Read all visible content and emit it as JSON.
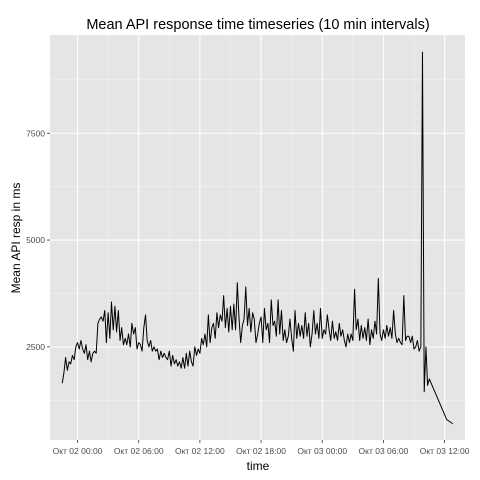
{
  "chart_data": {
    "type": "line",
    "title": "Mean API response time timeseries (10 min intervals)",
    "xlabel": "time",
    "ylabel": "Mean API resp in ms",
    "x_tick_labels": [
      "Окт 02 00:00",
      "Окт 02 06:00",
      "Окт 02 12:00",
      "Окт 02 18:00",
      "Окт 03 00:00",
      "Окт 03 06:00",
      "Окт 03 12:00"
    ],
    "x_ticks_hours": [
      0,
      6,
      12,
      18,
      24,
      30,
      36
    ],
    "x_range_hours": [
      -2.7,
      38.0
    ],
    "y_ticks": [
      2500,
      5000,
      7500
    ],
    "ylim": [
      320,
      9800
    ],
    "grid": true,
    "series": [
      {
        "color": "#000000",
        "points": [
          [
            -1.5,
            1650
          ],
          [
            -1.33,
            1900
          ],
          [
            -1.17,
            2250
          ],
          [
            -1.0,
            1950
          ],
          [
            -0.83,
            2150
          ],
          [
            -0.67,
            2100
          ],
          [
            -0.5,
            2300
          ],
          [
            -0.33,
            2200
          ],
          [
            -0.17,
            2500
          ],
          [
            0.0,
            2600
          ],
          [
            0.17,
            2450
          ],
          [
            0.33,
            2650
          ],
          [
            0.5,
            2450
          ],
          [
            0.67,
            2350
          ],
          [
            0.83,
            2550
          ],
          [
            1.0,
            2200
          ],
          [
            1.17,
            2400
          ],
          [
            1.33,
            2150
          ],
          [
            1.5,
            2350
          ],
          [
            1.67,
            2400
          ],
          [
            1.83,
            2350
          ],
          [
            2.0,
            3050
          ],
          [
            2.17,
            3150
          ],
          [
            2.33,
            3200
          ],
          [
            2.5,
            3100
          ],
          [
            2.67,
            3350
          ],
          [
            2.83,
            2600
          ],
          [
            3.0,
            3300
          ],
          [
            3.17,
            2700
          ],
          [
            3.33,
            3550
          ],
          [
            3.5,
            2900
          ],
          [
            3.67,
            3450
          ],
          [
            3.83,
            2850
          ],
          [
            4.0,
            3350
          ],
          [
            4.17,
            2650
          ],
          [
            4.33,
            2950
          ],
          [
            4.5,
            2550
          ],
          [
            4.67,
            2700
          ],
          [
            4.83,
            2550
          ],
          [
            5.0,
            2800
          ],
          [
            5.17,
            2500
          ],
          [
            5.33,
            3050
          ],
          [
            5.5,
            2800
          ],
          [
            5.67,
            2950
          ],
          [
            5.83,
            2450
          ],
          [
            6.0,
            2600
          ],
          [
            6.17,
            2550
          ],
          [
            6.33,
            2400
          ],
          [
            6.5,
            2950
          ],
          [
            6.67,
            3250
          ],
          [
            6.83,
            2650
          ],
          [
            7.0,
            2500
          ],
          [
            7.17,
            2650
          ],
          [
            7.33,
            2400
          ],
          [
            7.5,
            2500
          ],
          [
            7.67,
            2400
          ],
          [
            7.83,
            2450
          ],
          [
            8.0,
            2200
          ],
          [
            8.17,
            2400
          ],
          [
            8.33,
            2250
          ],
          [
            8.5,
            2350
          ],
          [
            8.67,
            2250
          ],
          [
            8.83,
            2200
          ],
          [
            9.0,
            2400
          ],
          [
            9.17,
            2050
          ],
          [
            9.33,
            2300
          ],
          [
            9.5,
            2100
          ],
          [
            9.67,
            2200
          ],
          [
            9.83,
            2050
          ],
          [
            10.0,
            2150
          ],
          [
            10.17,
            2000
          ],
          [
            10.33,
            2250
          ],
          [
            10.5,
            2000
          ],
          [
            10.67,
            2350
          ],
          [
            10.83,
            2050
          ],
          [
            11.0,
            2400
          ],
          [
            11.17,
            2150
          ],
          [
            11.33,
            2050
          ],
          [
            11.5,
            2500
          ],
          [
            11.67,
            2300
          ],
          [
            11.83,
            2450
          ],
          [
            12.0,
            2350
          ],
          [
            12.17,
            2700
          ],
          [
            12.33,
            2550
          ],
          [
            12.5,
            2800
          ],
          [
            12.67,
            2500
          ],
          [
            12.83,
            3250
          ],
          [
            13.0,
            2600
          ],
          [
            13.17,
            2950
          ],
          [
            13.33,
            3050
          ],
          [
            13.5,
            2700
          ],
          [
            13.67,
            3300
          ],
          [
            13.83,
            2950
          ],
          [
            14.0,
            3250
          ],
          [
            14.17,
            3100
          ],
          [
            14.33,
            3700
          ],
          [
            14.5,
            2950
          ],
          [
            14.67,
            3400
          ],
          [
            14.83,
            2850
          ],
          [
            15.0,
            3450
          ],
          [
            15.17,
            2900
          ],
          [
            15.33,
            3500
          ],
          [
            15.5,
            2900
          ],
          [
            15.67,
            4000
          ],
          [
            15.83,
            3200
          ],
          [
            16.0,
            2600
          ],
          [
            16.17,
            3000
          ],
          [
            16.33,
            3150
          ],
          [
            16.5,
            3900
          ],
          [
            16.67,
            3000
          ],
          [
            16.83,
            3400
          ],
          [
            17.0,
            2850
          ],
          [
            17.17,
            3300
          ],
          [
            17.33,
            3150
          ],
          [
            17.5,
            2600
          ],
          [
            17.67,
            2800
          ],
          [
            17.83,
            3050
          ],
          [
            18.0,
            3200
          ],
          [
            18.17,
            2600
          ],
          [
            18.33,
            3400
          ],
          [
            18.5,
            2900
          ],
          [
            18.67,
            3050
          ],
          [
            18.83,
            2600
          ],
          [
            19.0,
            3600
          ],
          [
            19.17,
            3000
          ],
          [
            19.33,
            3100
          ],
          [
            19.5,
            2750
          ],
          [
            19.67,
            3600
          ],
          [
            19.83,
            2800
          ],
          [
            20.0,
            3350
          ],
          [
            20.17,
            2650
          ],
          [
            20.33,
            2900
          ],
          [
            20.5,
            2600
          ],
          [
            20.67,
            2750
          ],
          [
            20.83,
            3150
          ],
          [
            21.0,
            2700
          ],
          [
            21.17,
            2400
          ],
          [
            21.33,
            3350
          ],
          [
            21.5,
            2700
          ],
          [
            21.67,
            3050
          ],
          [
            21.83,
            2750
          ],
          [
            22.0,
            3000
          ],
          [
            22.17,
            2700
          ],
          [
            22.33,
            3300
          ],
          [
            22.5,
            2750
          ],
          [
            22.67,
            3050
          ],
          [
            22.83,
            2500
          ],
          [
            23.0,
            2800
          ],
          [
            23.17,
            3350
          ],
          [
            23.33,
            2800
          ],
          [
            23.5,
            3050
          ],
          [
            23.67,
            2700
          ],
          [
            23.83,
            3400
          ],
          [
            24.0,
            2700
          ],
          [
            24.17,
            2900
          ],
          [
            24.33,
            2800
          ],
          [
            24.5,
            3250
          ],
          [
            24.67,
            2900
          ],
          [
            24.83,
            2650
          ],
          [
            25.0,
            3100
          ],
          [
            25.17,
            2700
          ],
          [
            25.33,
            2850
          ],
          [
            25.5,
            2650
          ],
          [
            25.67,
            3050
          ],
          [
            25.83,
            2750
          ],
          [
            26.0,
            2900
          ],
          [
            26.17,
            2650
          ],
          [
            26.33,
            2500
          ],
          [
            26.5,
            2800
          ],
          [
            26.67,
            2600
          ],
          [
            26.83,
            2800
          ],
          [
            27.0,
            2650
          ],
          [
            27.17,
            3850
          ],
          [
            27.33,
            2900
          ],
          [
            27.5,
            3150
          ],
          [
            27.67,
            2650
          ],
          [
            27.83,
            3000
          ],
          [
            28.0,
            2700
          ],
          [
            28.17,
            2950
          ],
          [
            28.33,
            2650
          ],
          [
            28.5,
            3150
          ],
          [
            28.67,
            2550
          ],
          [
            28.83,
            2900
          ],
          [
            29.0,
            2700
          ],
          [
            29.17,
            3100
          ],
          [
            29.33,
            2800
          ],
          [
            29.5,
            4100
          ],
          [
            29.67,
            2800
          ],
          [
            29.83,
            2650
          ],
          [
            30.0,
            2900
          ],
          [
            30.17,
            2700
          ],
          [
            30.33,
            3000
          ],
          [
            30.5,
            2750
          ],
          [
            30.67,
            2950
          ],
          [
            30.83,
            2700
          ],
          [
            31.0,
            3350
          ],
          [
            31.17,
            2800
          ],
          [
            31.33,
            2600
          ],
          [
            31.5,
            2700
          ],
          [
            31.67,
            2600
          ],
          [
            31.83,
            2550
          ],
          [
            32.0,
            3700
          ],
          [
            32.17,
            2650
          ],
          [
            32.33,
            2750
          ],
          [
            32.5,
            2750
          ],
          [
            32.67,
            2600
          ],
          [
            32.83,
            2750
          ],
          [
            33.0,
            2450
          ],
          [
            33.17,
            2500
          ],
          [
            33.33,
            2650
          ],
          [
            33.5,
            2400
          ],
          [
            33.67,
            2500
          ],
          [
            33.83,
            9400
          ],
          [
            34.0,
            1450
          ],
          [
            34.17,
            2500
          ],
          [
            34.33,
            1600
          ],
          [
            34.5,
            1750
          ],
          [
            36.2,
            800
          ],
          [
            36.5,
            750
          ],
          [
            36.8,
            700
          ]
        ]
      }
    ]
  }
}
